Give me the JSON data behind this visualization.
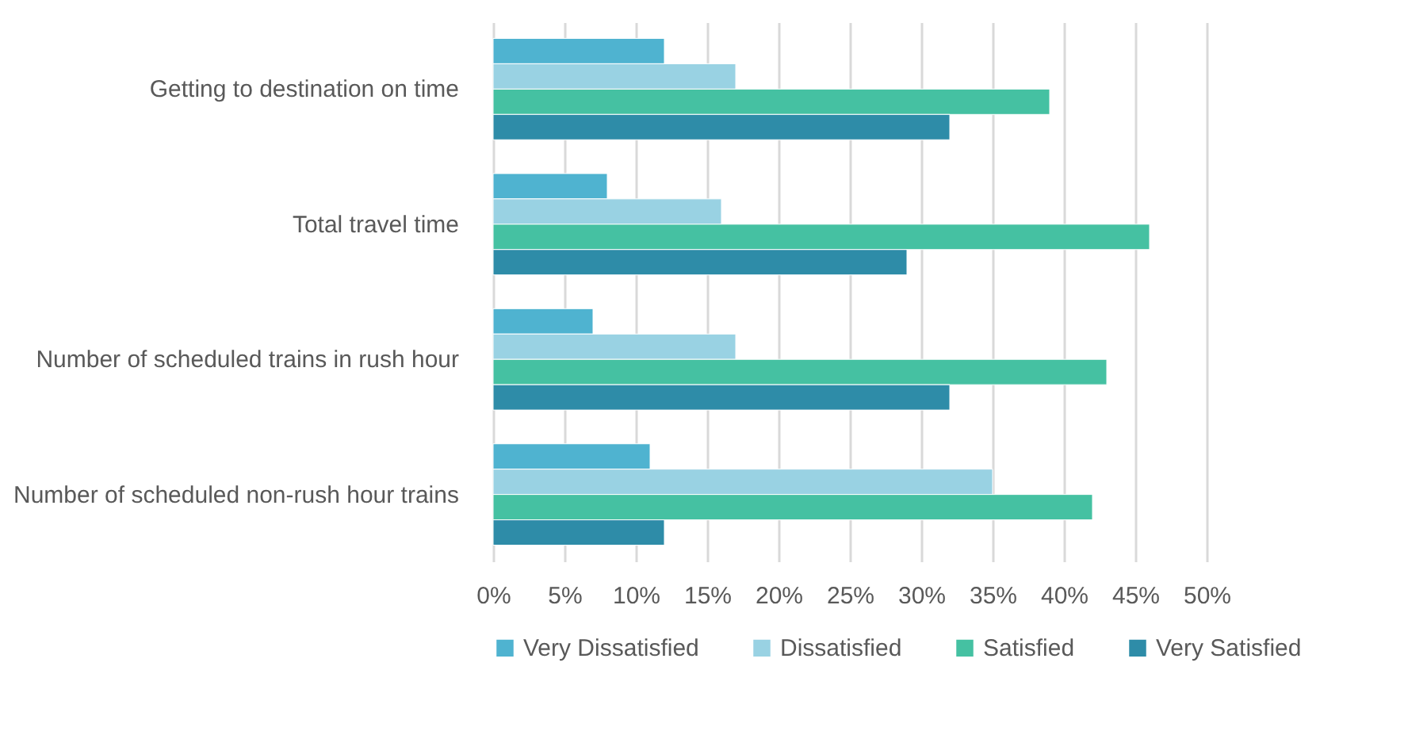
{
  "chart_data": {
    "type": "bar",
    "orientation": "horizontal",
    "categories": [
      "Getting to destination on time",
      "Total travel time",
      "Number of scheduled trains in rush hour",
      "Number of scheduled non-rush hour trains"
    ],
    "series": [
      {
        "name": "Very Dissatisfied",
        "color": "#4fb3d0",
        "values": [
          12,
          8,
          7,
          11
        ]
      },
      {
        "name": "Dissatisfied",
        "color": "#99d2e3",
        "values": [
          17,
          16,
          17,
          35
        ]
      },
      {
        "name": "Satisfied",
        "color": "#45c1a2",
        "values": [
          39,
          46,
          43,
          42
        ]
      },
      {
        "name": "Very Satisfied",
        "color": "#2e8ca8",
        "values": [
          32,
          29,
          32,
          12
        ]
      }
    ],
    "xlim": [
      0,
      50
    ],
    "xticks": [
      {
        "value": 0,
        "label": "0%"
      },
      {
        "value": 5,
        "label": "5%"
      },
      {
        "value": 10,
        "label": "10%"
      },
      {
        "value": 15,
        "label": "15%"
      },
      {
        "value": 20,
        "label": "20%"
      },
      {
        "value": 25,
        "label": "25%"
      },
      {
        "value": 30,
        "label": "30%"
      },
      {
        "value": 35,
        "label": "35%"
      },
      {
        "value": 40,
        "label": "40%"
      },
      {
        "value": 45,
        "label": "45%"
      },
      {
        "value": 50,
        "label": "50%"
      }
    ],
    "grid": "x",
    "legend": "bottom"
  }
}
